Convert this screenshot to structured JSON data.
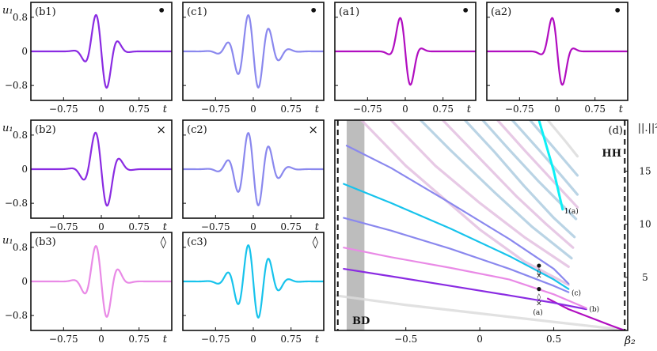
{
  "colors": {
    "violet": "#8a2be2",
    "periwinkle": "#8a88ee",
    "magenta": "#b10ec0",
    "pink": "#e98ae6",
    "cyan": "#17c3ec",
    "bright_cyan": "#0bf0f6",
    "faint_blue": "#aecde0",
    "faint_pink": "#e3bfe0",
    "faint_gray": "#dcdcdc",
    "band_gray": "#bdbdbd"
  },
  "chart_data": [
    {
      "id": "b1",
      "type": "line",
      "label": "(b1)",
      "marker": "•",
      "ylabel": "u₁",
      "xlabel": "t",
      "xticks": [
        "−0.75",
        "0",
        "0.75"
      ],
      "yticks": [
        "0.8",
        "0",
        "−0.8"
      ],
      "xlim": [
        -1.4,
        1.4
      ],
      "ylim": [
        -1.15,
        1.15
      ],
      "color": "violet",
      "series": [
        {
          "kind": "odd",
          "A": 1.0,
          "w": 0.2,
          "k": 13
        }
      ]
    },
    {
      "id": "c1",
      "type": "line",
      "label": "(c1)",
      "marker": "•",
      "ylabel": "",
      "xlabel": "t",
      "xticks": [
        "−0.75",
        "0",
        "0.75"
      ],
      "yticks": [],
      "xlim": [
        -1.4,
        1.4
      ],
      "ylim": [
        -1.15,
        1.15
      ],
      "color": "periwinkle",
      "series": [
        {
          "kind": "odd",
          "A": 0.9,
          "w": 0.3,
          "k": 15
        }
      ]
    },
    {
      "id": "a1",
      "type": "line",
      "label": "(a1)",
      "marker": "•",
      "ylabel": "",
      "xlabel": "t",
      "xticks": [
        "−0.75",
        "0",
        "0.75"
      ],
      "yticks": [],
      "xlim": [
        -1.4,
        1.4
      ],
      "ylim": [
        -1.15,
        1.15
      ],
      "color": "magenta",
      "series": [
        {
          "kind": "odd",
          "A": 1.05,
          "w": 0.15,
          "k": 12
        }
      ]
    },
    {
      "id": "a2",
      "type": "line",
      "label": "(a2)",
      "marker": "•",
      "ylabel": "",
      "xlabel": "t",
      "xticks": [
        "−0.75",
        "0",
        "0.75"
      ],
      "yticks": [],
      "xlim": [
        -1.4,
        1.4
      ],
      "ylim": [
        -1.15,
        1.15
      ],
      "color": "magenta",
      "series": [
        {
          "kind": "odd",
          "A": 1.05,
          "w": 0.15,
          "k": 12
        }
      ]
    },
    {
      "id": "b2",
      "type": "line",
      "label": "(b2)",
      "marker": "×",
      "ylabel": "u₁",
      "xlabel": "t",
      "xticks": [
        "−0.75",
        "0",
        "0.75"
      ],
      "yticks": [
        "0.8",
        "0",
        "−0.8"
      ],
      "xlim": [
        -1.4,
        1.4
      ],
      "ylim": [
        -1.15,
        1.15
      ],
      "color": "violet",
      "series": [
        {
          "kind": "odd",
          "A": 1.0,
          "w": 0.22,
          "k": 12
        }
      ]
    },
    {
      "id": "c2",
      "type": "line",
      "label": "(c2)",
      "marker": "×",
      "ylabel": "",
      "xlabel": "t",
      "xticks": [
        "−0.75",
        "0",
        "0.75"
      ],
      "yticks": [],
      "xlim": [
        -1.4,
        1.4
      ],
      "ylim": [
        -1.15,
        1.15
      ],
      "color": "periwinkle",
      "series": [
        {
          "kind": "odd",
          "A": 0.9,
          "w": 0.3,
          "k": 15
        }
      ]
    },
    {
      "id": "b3",
      "type": "line",
      "label": "(b3)",
      "marker": "◊",
      "ylabel": "u₁",
      "xlabel": "t",
      "xticks": [
        "−0.75",
        "0",
        "0.75"
      ],
      "yticks": [
        "0.8",
        "0",
        "−0.8"
      ],
      "xlim": [
        -1.4,
        1.4
      ],
      "ylim": [
        -1.15,
        1.15
      ],
      "color": "pink",
      "series": [
        {
          "kind": "odd",
          "A": 0.95,
          "w": 0.22,
          "k": 13
        }
      ]
    },
    {
      "id": "c3",
      "type": "line",
      "label": "(c3)",
      "marker": "◊",
      "ylabel": "",
      "xlabel": "t",
      "xticks": [
        "−0.75",
        "0",
        "0.75"
      ],
      "yticks": [],
      "xlim": [
        -1.4,
        1.4
      ],
      "ylim": [
        -1.15,
        1.15
      ],
      "color": "cyan",
      "series": [
        {
          "kind": "odd",
          "A": 0.9,
          "w": 0.3,
          "k": 15
        }
      ]
    },
    {
      "id": "d",
      "type": "line",
      "label": "(d)",
      "xlabel": "β₂",
      "ylabel": "||.||²",
      "xlim": [
        -0.98,
        1.0
      ],
      "ylim": [
        0,
        19.8
      ],
      "xticks": [
        -0.5,
        0,
        0.5
      ],
      "yticks": [
        5,
        10,
        15
      ],
      "shaded_band": [
        -0.9,
        -0.78
      ],
      "vlines": [
        -0.96,
        0.98
      ],
      "region_labels": [
        "BD",
        "HH"
      ],
      "annotations": [
        "1(a)",
        "(c)",
        "(b)",
        "(a)"
      ],
      "faint_curves": [
        {
          "color": "faint_gray",
          "points": [
            [
              -0.98,
              3.3
            ],
            [
              -0.5,
              2.4
            ],
            [
              0,
              1.6
            ],
            [
              0.5,
              0.8
            ],
            [
              0.98,
              0.05
            ]
          ]
        },
        {
          "color": "faint_pink",
          "points": [
            [
              -0.8,
              19.8
            ],
            [
              -0.5,
              15.5
            ],
            [
              0,
              9.5
            ],
            [
              0.3,
              6.5
            ],
            [
              0.6,
              4.3
            ]
          ]
        },
        {
          "color": "faint_pink",
          "points": [
            [
              -0.6,
              19.8
            ],
            [
              -0.3,
              15.5
            ],
            [
              0,
              12.0
            ],
            [
              0.3,
              8.8
            ],
            [
              0.6,
              6.0
            ]
          ]
        },
        {
          "color": "faint_blue",
          "points": [
            [
              -0.4,
              19.8
            ],
            [
              -0.2,
              17.0
            ],
            [
              0.1,
              13.0
            ],
            [
              0.35,
              9.8
            ],
            [
              0.62,
              6.8
            ]
          ]
        },
        {
          "color": "faint_pink",
          "points": [
            [
              -0.25,
              19.8
            ],
            [
              0,
              16.2
            ],
            [
              0.25,
              12.6
            ],
            [
              0.45,
              10.0
            ],
            [
              0.63,
              7.8
            ]
          ]
        },
        {
          "color": "faint_blue",
          "points": [
            [
              -0.1,
              19.8
            ],
            [
              0.1,
              16.8
            ],
            [
              0.3,
              13.6
            ],
            [
              0.5,
              10.6
            ],
            [
              0.64,
              8.8
            ]
          ]
        },
        {
          "color": "faint_blue",
          "points": [
            [
              0.02,
              19.8
            ],
            [
              0.2,
              17.0
            ],
            [
              0.4,
              14.0
            ],
            [
              0.65,
              10.5
            ]
          ]
        },
        {
          "color": "faint_pink",
          "points": [
            [
              0.12,
              19.8
            ],
            [
              0.3,
              17.0
            ],
            [
              0.5,
              14.0
            ],
            [
              0.66,
              11.6
            ]
          ]
        },
        {
          "color": "faint_blue",
          "points": [
            [
              0.22,
              19.8
            ],
            [
              0.4,
              17.0
            ],
            [
              0.55,
              14.6
            ],
            [
              0.66,
              12.8
            ]
          ]
        },
        {
          "color": "faint_blue",
          "points": [
            [
              0.34,
              19.8
            ],
            [
              0.5,
              17.2
            ],
            [
              0.66,
              14.6
            ]
          ]
        },
        {
          "color": "faint_gray",
          "points": [
            [
              0.46,
              19.8
            ],
            [
              0.58,
              17.8
            ],
            [
              0.66,
              16.4
            ]
          ]
        }
      ],
      "series": [
        {
          "color": "magenta",
          "width": 2.2,
          "points": [
            [
              0.46,
              3.0
            ],
            [
              0.6,
              2.0
            ],
            [
              0.75,
              1.2
            ],
            [
              0.9,
              0.4
            ],
            [
              0.98,
              0.0
            ]
          ]
        },
        {
          "color": "violet",
          "width": 2.2,
          "points": [
            [
              -0.92,
              5.8
            ],
            [
              -0.6,
              5.1
            ],
            [
              -0.2,
              4.2
            ],
            [
              0.2,
              3.3
            ],
            [
              0.5,
              2.6
            ],
            [
              0.72,
              2.0
            ]
          ]
        },
        {
          "color": "pink",
          "width": 2.2,
          "points": [
            [
              -0.92,
              7.8
            ],
            [
              -0.6,
              6.9
            ],
            [
              -0.2,
              5.9
            ],
            [
              0.2,
              4.8
            ],
            [
              0.5,
              3.4
            ],
            [
              0.72,
              2.1
            ]
          ]
        },
        {
          "color": "periwinkle",
          "width": 2.2,
          "points": [
            [
              -0.92,
              10.6
            ],
            [
              -0.6,
              9.4
            ],
            [
              -0.2,
              7.7
            ],
            [
              0.2,
              5.8
            ],
            [
              0.5,
              4.2
            ],
            [
              0.6,
              3.6
            ]
          ]
        },
        {
          "color": "cyan",
          "width": 2.2,
          "points": [
            [
              -0.92,
              13.8
            ],
            [
              -0.6,
              12.0
            ],
            [
              -0.2,
              9.6
            ],
            [
              0.2,
              7.0
            ],
            [
              0.5,
              4.8
            ],
            [
              0.6,
              3.9
            ]
          ]
        },
        {
          "color": "periwinkle",
          "width": 2.2,
          "points": [
            [
              -0.9,
              17.4
            ],
            [
              -0.6,
              15.3
            ],
            [
              -0.2,
              12.0
            ],
            [
              0.2,
              8.6
            ],
            [
              0.5,
              5.8
            ],
            [
              0.6,
              4.4
            ]
          ]
        },
        {
          "color": "bright_cyan",
          "width": 3.0,
          "points": [
            [
              0.4,
              19.8
            ],
            [
              0.5,
              15.0
            ],
            [
              0.56,
              11.4
            ]
          ]
        }
      ],
      "dots": [
        [
          0.4,
          6.1
        ],
        [
          0.4,
          3.9
        ]
      ],
      "crosses": [
        [
          0.4,
          5.2
        ],
        [
          0.4,
          2.6
        ]
      ],
      "diamonds": [
        [
          0.4,
          5.6
        ],
        [
          0.4,
          3.2
        ]
      ]
    }
  ]
}
